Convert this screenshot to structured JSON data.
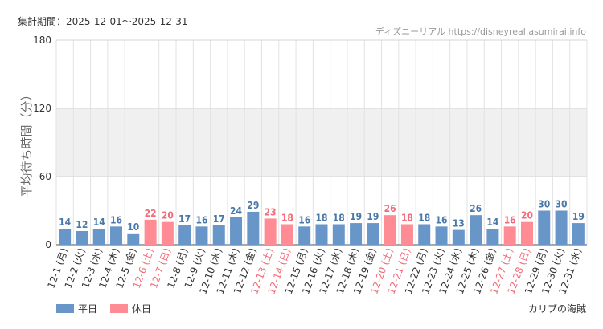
{
  "period_text": "集計期間：2025-12-01～2025-12-31",
  "source_text": "ディズニーリアル https://disneyreal.asumirai.info",
  "ylabel": "平均待ち時間（分）",
  "footer_right": "カリブの海賊",
  "colors": {
    "weekday": "#6996c8",
    "holiday": "#ff8c94",
    "weekday_label": "#4a78a8",
    "holiday_label": "#f26b78",
    "band": "#f0f0f0",
    "grid": "#e2e2e2"
  },
  "chart_data": {
    "type": "bar",
    "title": "",
    "xlabel": "",
    "ylabel": "平均待ち時間（分）",
    "ylim": [
      0,
      180
    ],
    "yticks": [
      0,
      60,
      120,
      180
    ],
    "highlight_band": [
      60,
      120
    ],
    "grid": true,
    "legend_position": "bottom-left",
    "legend": [
      {
        "name": "平日",
        "key": "weekday"
      },
      {
        "name": "休日",
        "key": "holiday"
      }
    ],
    "categories": [
      "12-1 (月)",
      "12-2 (火)",
      "12-3 (水)",
      "12-4 (木)",
      "12-5 (金)",
      "12-6 (土)",
      "12-7 (日)",
      "12-8 (月)",
      "12-9 (火)",
      "12-10 (水)",
      "12-11 (木)",
      "12-12 (金)",
      "12-13 (土)",
      "12-14 (日)",
      "12-15 (月)",
      "12-16 (火)",
      "12-17 (水)",
      "12-18 (木)",
      "12-19 (金)",
      "12-20 (土)",
      "12-21 (日)",
      "12-22 (月)",
      "12-23 (火)",
      "12-24 (水)",
      "12-25 (木)",
      "12-26 (金)",
      "12-27 (土)",
      "12-28 (日)",
      "12-29 (月)",
      "12-30 (火)",
      "12-31 (水)"
    ],
    "values": [
      14,
      12,
      14,
      16,
      10,
      22,
      20,
      17,
      16,
      17,
      24,
      29,
      23,
      18,
      16,
      18,
      18,
      19,
      19,
      26,
      18,
      18,
      16,
      13,
      26,
      14,
      16,
      20,
      30,
      30,
      19
    ],
    "day_type": [
      "weekday",
      "weekday",
      "weekday",
      "weekday",
      "weekday",
      "holiday",
      "holiday",
      "weekday",
      "weekday",
      "weekday",
      "weekday",
      "weekday",
      "holiday",
      "holiday",
      "weekday",
      "weekday",
      "weekday",
      "weekday",
      "weekday",
      "holiday",
      "holiday",
      "weekday",
      "weekday",
      "weekday",
      "weekday",
      "weekday",
      "holiday",
      "holiday",
      "weekday",
      "weekday",
      "weekday"
    ]
  }
}
